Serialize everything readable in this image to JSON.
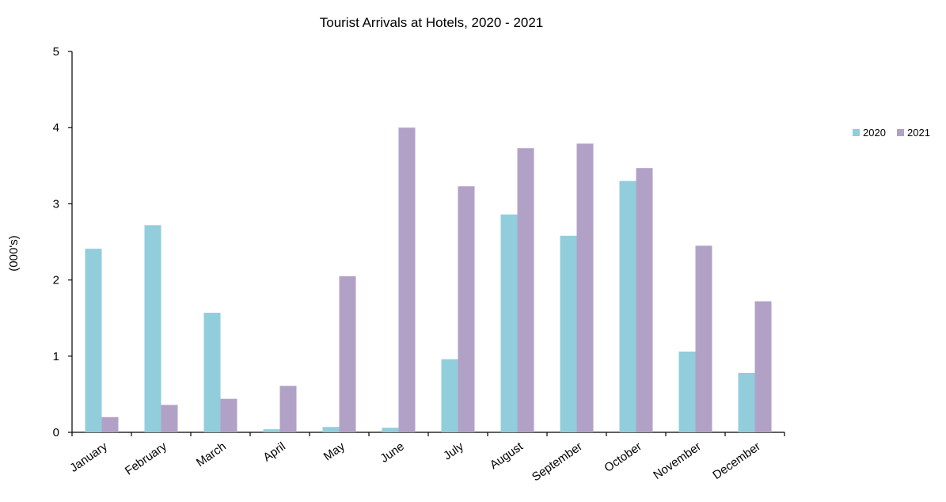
{
  "chart_data": {
    "type": "bar",
    "title": "Tourist Arrivals at Hotels, 2020 - 2021",
    "xlabel": "",
    "ylabel": "(000's)",
    "ylim": [
      0,
      5
    ],
    "yticks": [
      0,
      1,
      2,
      3,
      4,
      5
    ],
    "grid": false,
    "legend_position": "right",
    "categories": [
      "January",
      "February",
      "March",
      "April",
      "May",
      "June",
      "July",
      "August",
      "September",
      "October",
      "November",
      "December"
    ],
    "series": [
      {
        "name": "2020",
        "color": "#92CDDC",
        "values": [
          2.41,
          2.72,
          1.57,
          0.04,
          0.07,
          0.06,
          0.96,
          2.86,
          2.58,
          3.3,
          1.06,
          0.78
        ]
      },
      {
        "name": "2021",
        "color": "#B2A1C7",
        "values": [
          0.2,
          0.36,
          0.44,
          0.61,
          2.05,
          4.0,
          3.23,
          3.73,
          3.79,
          3.47,
          2.45,
          1.72
        ]
      }
    ]
  }
}
